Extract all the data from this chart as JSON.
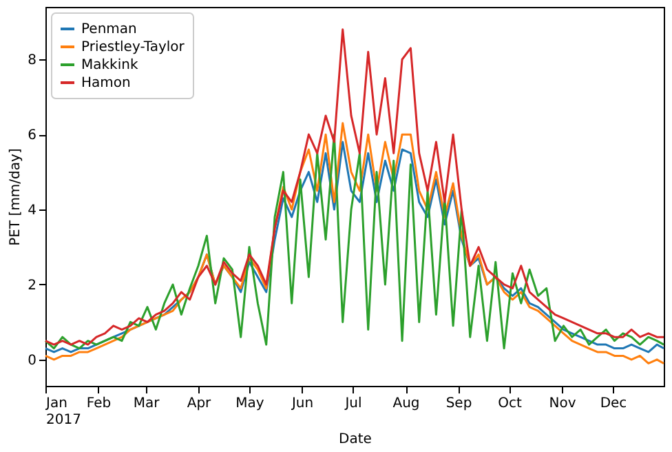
{
  "chart_data": {
    "type": "line",
    "xlabel": "Date",
    "ylabel": "PET [mm/day]",
    "x": [
      "2017-01-01",
      "2017-01-06",
      "2017-01-11",
      "2017-01-16",
      "2017-01-21",
      "2017-01-26",
      "2017-01-31",
      "2017-02-05",
      "2017-02-10",
      "2017-02-15",
      "2017-02-20",
      "2017-02-25",
      "2017-03-02",
      "2017-03-07",
      "2017-03-12",
      "2017-03-17",
      "2017-03-22",
      "2017-03-27",
      "2017-04-01",
      "2017-04-06",
      "2017-04-11",
      "2017-04-16",
      "2017-04-21",
      "2017-04-26",
      "2017-05-01",
      "2017-05-06",
      "2017-05-11",
      "2017-05-16",
      "2017-05-21",
      "2017-05-26",
      "2017-05-31",
      "2017-06-05",
      "2017-06-10",
      "2017-06-15",
      "2017-06-20",
      "2017-06-25",
      "2017-06-30",
      "2017-07-05",
      "2017-07-10",
      "2017-07-15",
      "2017-07-20",
      "2017-07-25",
      "2017-07-30",
      "2017-08-04",
      "2017-08-09",
      "2017-08-14",
      "2017-08-19",
      "2017-08-24",
      "2017-08-29",
      "2017-09-03",
      "2017-09-08",
      "2017-09-13",
      "2017-09-18",
      "2017-09-23",
      "2017-09-28",
      "2017-10-03",
      "2017-10-08",
      "2017-10-13",
      "2017-10-18",
      "2017-10-23",
      "2017-10-28",
      "2017-11-02",
      "2017-11-07",
      "2017-11-12",
      "2017-11-17",
      "2017-11-22",
      "2017-11-27",
      "2017-12-02",
      "2017-12-07",
      "2017-12-12",
      "2017-12-17",
      "2017-12-22",
      "2017-12-27",
      "2017-12-31"
    ],
    "series": [
      {
        "name": "Penman",
        "color": "#1f77b4",
        "values": [
          0.3,
          0.2,
          0.3,
          0.2,
          0.3,
          0.3,
          0.4,
          0.5,
          0.6,
          0.7,
          0.8,
          0.9,
          1.0,
          1.1,
          1.2,
          1.4,
          1.6,
          1.8,
          2.2,
          2.8,
          2.0,
          2.5,
          2.2,
          1.8,
          2.6,
          2.2,
          1.8,
          3.2,
          4.3,
          3.8,
          4.5,
          5.0,
          4.2,
          5.5,
          4.0,
          5.8,
          4.5,
          4.2,
          5.5,
          4.2,
          5.3,
          4.5,
          5.6,
          5.5,
          4.2,
          3.8,
          4.8,
          3.6,
          4.5,
          3.2,
          2.5,
          2.7,
          2.0,
          2.2,
          1.9,
          1.7,
          1.9,
          1.5,
          1.4,
          1.2,
          1.0,
          0.8,
          0.7,
          0.6,
          0.5,
          0.4,
          0.4,
          0.3,
          0.3,
          0.4,
          0.3,
          0.2,
          0.4,
          0.3
        ]
      },
      {
        "name": "Priestley-Taylor",
        "color": "#ff7f0e",
        "values": [
          0.1,
          0.0,
          0.1,
          0.1,
          0.2,
          0.2,
          0.3,
          0.4,
          0.5,
          0.6,
          0.8,
          0.9,
          1.0,
          1.1,
          1.2,
          1.3,
          1.6,
          1.8,
          2.2,
          2.8,
          2.0,
          2.5,
          2.2,
          1.9,
          2.7,
          2.4,
          1.9,
          3.5,
          4.6,
          4.0,
          5.0,
          5.6,
          4.5,
          6.0,
          4.2,
          6.3,
          5.0,
          4.5,
          6.0,
          4.5,
          5.8,
          4.8,
          6.0,
          6.0,
          4.5,
          4.0,
          5.0,
          3.8,
          4.7,
          3.3,
          2.5,
          2.8,
          2.0,
          2.2,
          1.8,
          1.6,
          1.8,
          1.4,
          1.3,
          1.1,
          0.9,
          0.7,
          0.5,
          0.4,
          0.3,
          0.2,
          0.2,
          0.1,
          0.1,
          0.0,
          0.1,
          -0.1,
          0.0,
          -0.1
        ]
      },
      {
        "name": "Makkink",
        "color": "#2ca02c",
        "values": [
          0.5,
          0.3,
          0.6,
          0.4,
          0.3,
          0.5,
          0.4,
          0.5,
          0.6,
          0.5,
          1.0,
          0.9,
          1.4,
          0.8,
          1.5,
          2.0,
          1.2,
          1.9,
          2.5,
          3.3,
          1.5,
          2.7,
          2.4,
          0.6,
          3.0,
          1.5,
          0.4,
          3.8,
          5.0,
          1.5,
          4.8,
          2.2,
          5.5,
          3.2,
          6.0,
          1.0,
          4.0,
          5.5,
          0.8,
          5.0,
          2.0,
          5.3,
          0.5,
          5.2,
          1.0,
          4.5,
          1.2,
          4.3,
          0.9,
          4.0,
          0.6,
          2.5,
          0.5,
          2.6,
          0.3,
          2.3,
          1.5,
          2.4,
          1.7,
          1.9,
          0.5,
          0.9,
          0.6,
          0.8,
          0.4,
          0.6,
          0.8,
          0.5,
          0.7,
          0.6,
          0.4,
          0.6,
          0.5,
          0.4
        ]
      },
      {
        "name": "Hamon",
        "color": "#d62728",
        "values": [
          0.5,
          0.4,
          0.5,
          0.4,
          0.5,
          0.4,
          0.6,
          0.7,
          0.9,
          0.8,
          0.9,
          1.1,
          1.0,
          1.2,
          1.3,
          1.5,
          1.8,
          1.6,
          2.2,
          2.5,
          2.0,
          2.6,
          2.3,
          2.1,
          2.8,
          2.5,
          2.0,
          3.5,
          4.5,
          4.2,
          5.0,
          6.0,
          5.5,
          6.5,
          5.8,
          8.8,
          6.5,
          5.5,
          8.2,
          6.0,
          7.5,
          5.5,
          8.0,
          8.3,
          5.5,
          4.5,
          5.8,
          4.2,
          6.0,
          4.0,
          2.5,
          3.0,
          2.4,
          2.2,
          2.0,
          1.9,
          2.5,
          1.8,
          1.6,
          1.4,
          1.2,
          1.1,
          1.0,
          0.9,
          0.8,
          0.7,
          0.7,
          0.6,
          0.6,
          0.8,
          0.6,
          0.7,
          0.6,
          0.6
        ]
      }
    ],
    "xlim": [
      "2017-01-01",
      "2017-12-31"
    ],
    "xticks": [
      {
        "value": "2017-01-01",
        "label": "Jan\n2017"
      },
      {
        "value": "2017-02-01",
        "label": "Feb"
      },
      {
        "value": "2017-03-01",
        "label": "Mar"
      },
      {
        "value": "2017-04-01",
        "label": "Apr"
      },
      {
        "value": "2017-05-01",
        "label": "May"
      },
      {
        "value": "2017-06-01",
        "label": "Jun"
      },
      {
        "value": "2017-07-01",
        "label": "Jul"
      },
      {
        "value": "2017-08-01",
        "label": "Aug"
      },
      {
        "value": "2017-09-01",
        "label": "Sep"
      },
      {
        "value": "2017-10-01",
        "label": "Oct"
      },
      {
        "value": "2017-11-01",
        "label": "Nov"
      },
      {
        "value": "2017-12-01",
        "label": "Dec"
      }
    ],
    "ylim": [
      -0.7,
      9.4
    ],
    "yticks": [
      0,
      2,
      4,
      6,
      8
    ],
    "legend": "top left",
    "grid": false,
    "marker": "none",
    "line_style": "solid"
  }
}
